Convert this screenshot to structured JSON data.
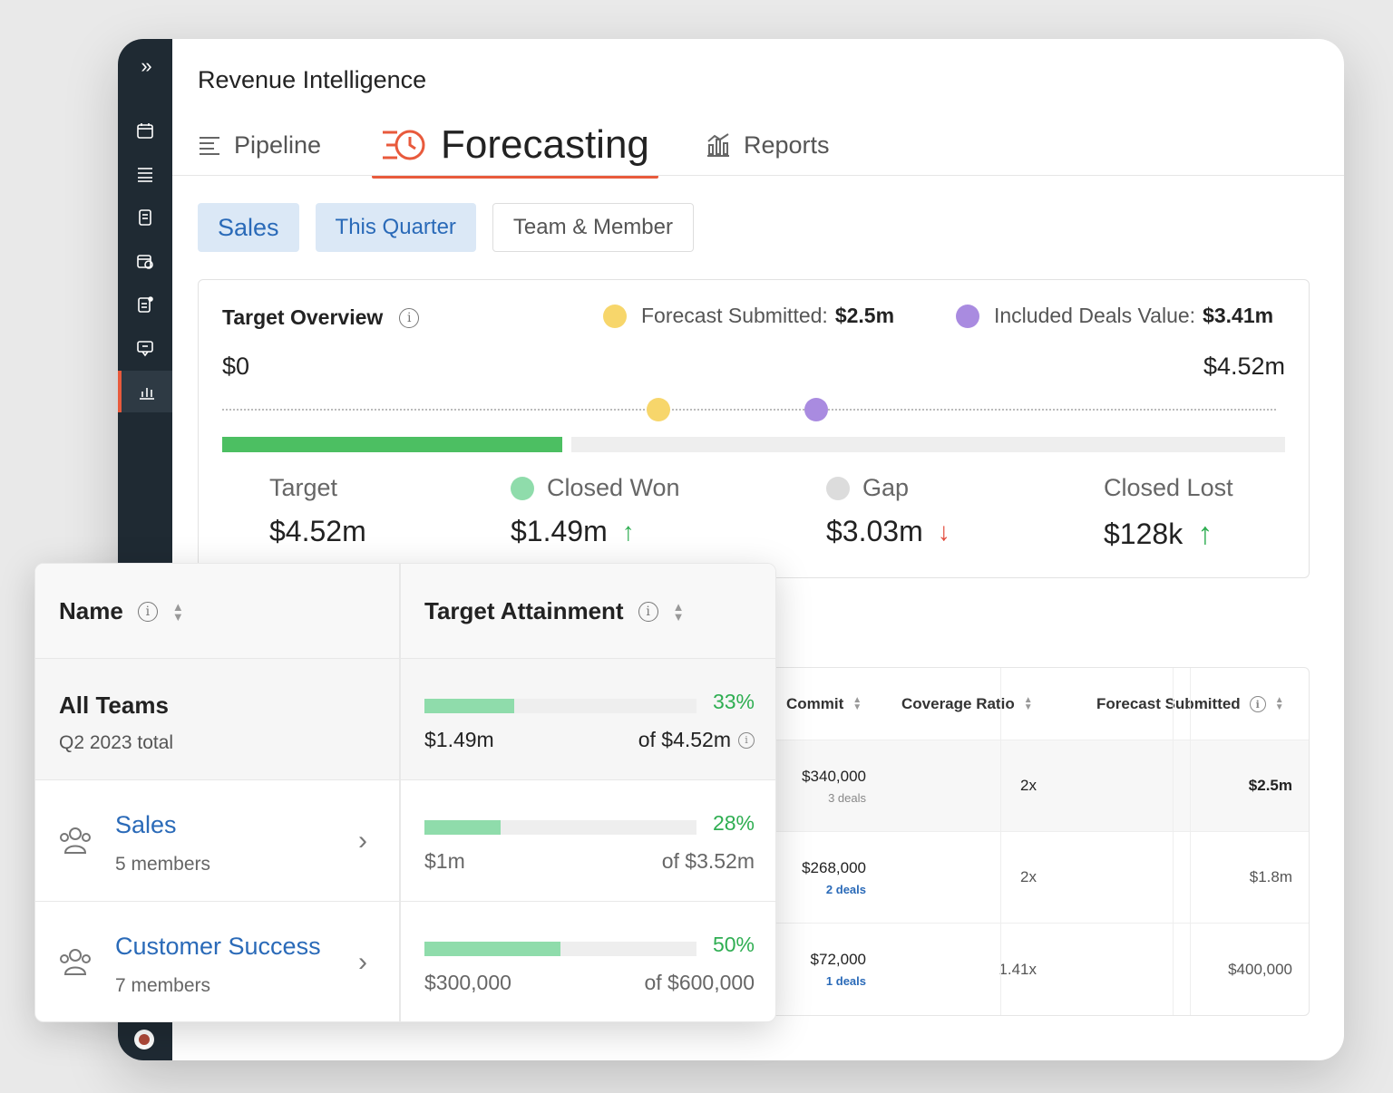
{
  "app": {
    "title": "Revenue Intelligence",
    "accent_color": "#e85a3c",
    "rail_icons": [
      "calendar-icon",
      "list-checks-icon",
      "document-icon",
      "calendar-clock-icon",
      "note-star-icon",
      "chat-icon",
      "analytics-icon"
    ],
    "rail_active": "analytics-icon"
  },
  "tabs": [
    {
      "label": "Pipeline",
      "icon": "lines-icon"
    },
    {
      "label": "Forecasting",
      "icon": "forecast-clock-icon",
      "active": true
    },
    {
      "label": "Reports",
      "icon": "chart-icon"
    }
  ],
  "filters": {
    "sales": "Sales",
    "period": "This Quarter",
    "scope": "Team & Member"
  },
  "overview": {
    "title": "Target Overview",
    "legend": [
      {
        "label": "Forecast Submitted:",
        "value": "$2.5m",
        "color": "#f7d66b"
      },
      {
        "label": "Included Deals Value:",
        "value": "$3.41m",
        "color": "#a98be0"
      }
    ],
    "scale_min": "$0",
    "scale_max": "$4.52m",
    "target_numeric": 4.52,
    "closed_won_numeric": 1.49,
    "forecast_numeric": 2.5,
    "included_numeric": 3.41,
    "stats": [
      {
        "label": "Target",
        "value": "$4.52m"
      },
      {
        "label": "Closed Won",
        "value": "$1.49m",
        "trend": "up",
        "dot": "#8fdcab"
      },
      {
        "label": "Gap",
        "value": "$3.03m",
        "trend": "down",
        "dot": "#dcdcdc"
      },
      {
        "label": "Closed Lost",
        "value": "$128k",
        "trend": "up"
      }
    ]
  },
  "background_table": {
    "headers": [
      "Commit",
      "Coverage Ratio",
      "Forecast Submitted"
    ],
    "rows": [
      {
        "commit": "$340,000",
        "deals": "3 deals",
        "ratio": "2x",
        "forecast": "$2.5m"
      },
      {
        "commit": "$268,000",
        "deals": "2 deals",
        "ratio": "2x",
        "forecast": "$1.8m"
      },
      {
        "commit": "$72,000",
        "deals": "1 deals",
        "ratio": "1.41x",
        "forecast": "$400,000"
      }
    ]
  },
  "teams_table": {
    "headers": {
      "name": "Name",
      "attainment": "Target Attainment"
    },
    "total": {
      "name": "All Teams",
      "sub": "Q2 2023 total",
      "pct": "33%",
      "pct_value": 33,
      "amount": "$1.49m",
      "of": "of $4.52m"
    },
    "rows": [
      {
        "name": "Sales",
        "sub": "5 members",
        "pct": "28%",
        "pct_value": 28,
        "amount": "$1m",
        "of": "of $3.52m"
      },
      {
        "name": "Customer Success",
        "sub": "7 members",
        "pct": "50%",
        "pct_value": 50,
        "amount": "$300,000",
        "of": "of $600,000"
      }
    ]
  }
}
